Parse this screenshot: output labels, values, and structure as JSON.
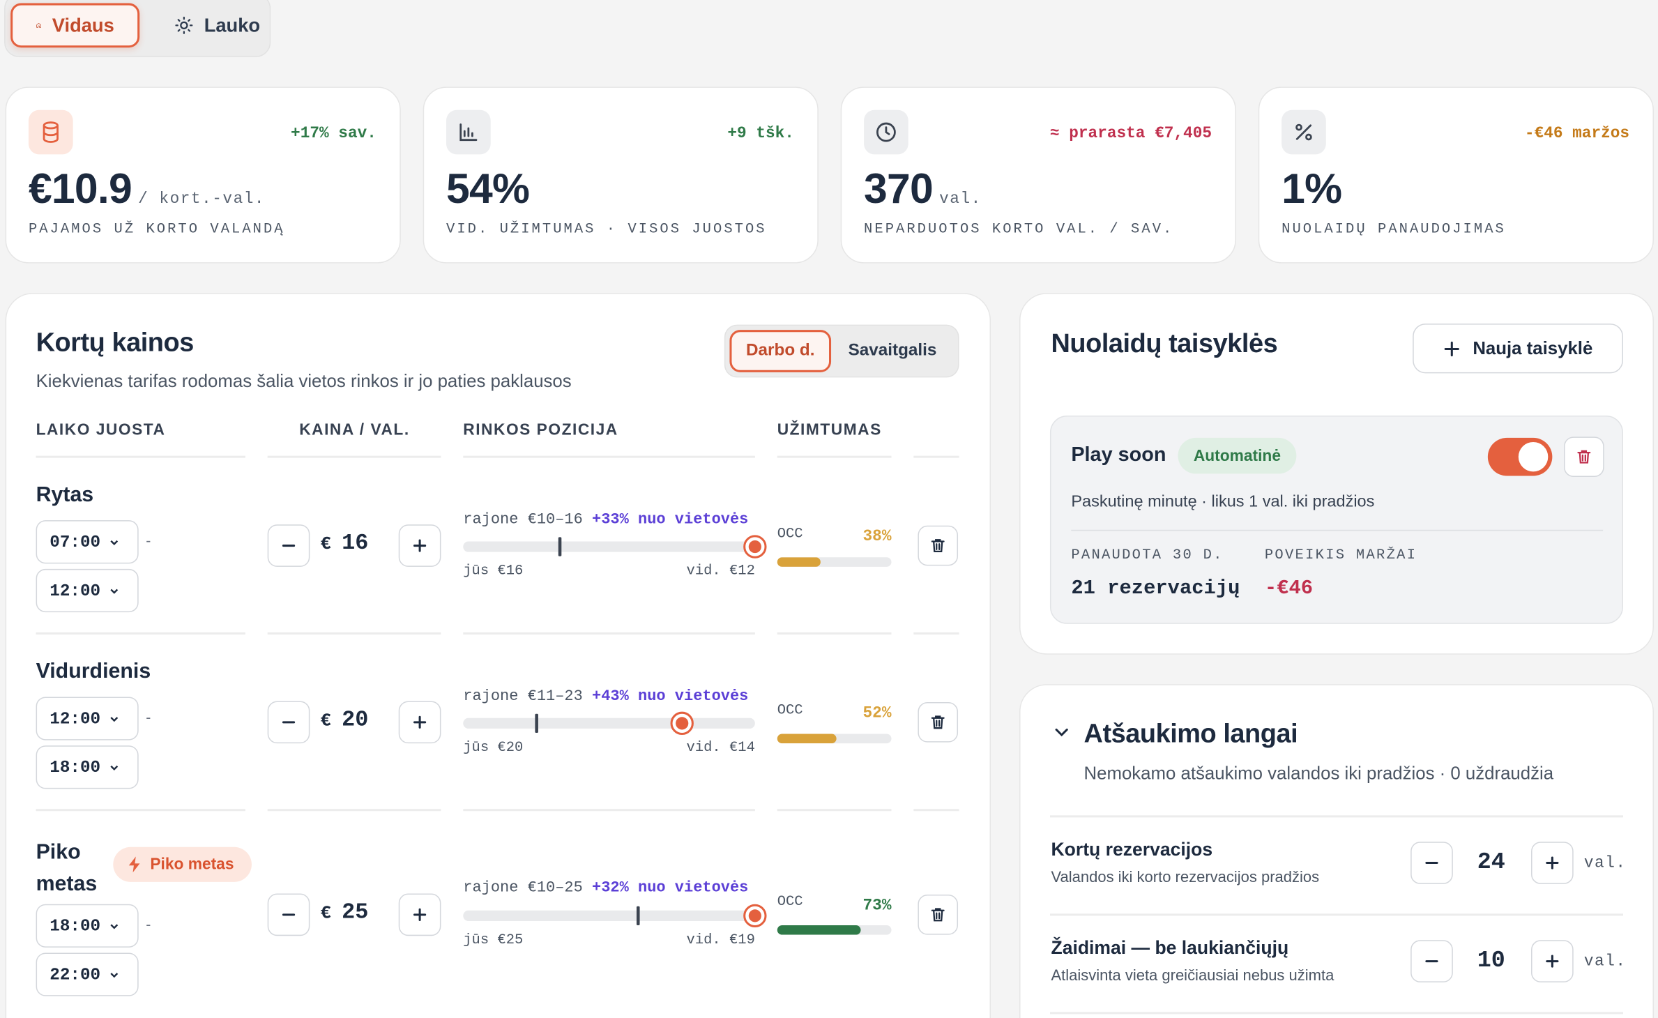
{
  "scope_tabs": {
    "indoor": "Vidaus",
    "outdoor": "Lauko"
  },
  "kpis": [
    {
      "value": "€10.9",
      "unit": "/ kort.-val.",
      "label": "PAJAMOS UŽ KORTO VALANDĄ",
      "delta": "+17% sav.",
      "delta_color": "#2f7a48",
      "icon": "database-icon"
    },
    {
      "value": "54%",
      "unit": "",
      "label": "VID. UŽIMTUMAS · VISOS JUOSTOS",
      "delta": "+9 tšk.",
      "delta_color": "#2f7a48",
      "icon": "bar-chart-icon"
    },
    {
      "value": "370",
      "unit": "val.",
      "label": "NEPARDUOTOS KORTO VAL. / SAV.",
      "delta": "≈ prarasta €7,405",
      "delta_color": "#c0304e",
      "icon": "clock-icon"
    },
    {
      "value": "1%",
      "unit": "",
      "label": "NUOLAIDŲ PANAUDOJIMAS",
      "delta": "-€46 maržos",
      "delta_color": "#c47a18",
      "icon": "percent-icon"
    }
  ],
  "pricing": {
    "title": "Kortų kainos",
    "subtitle": "Kiekvienas tarifas rodomas šalia vietos rinkos ir jo paties paklausos",
    "toggle_weekday": "Darbo d.",
    "toggle_weekend": "Savaitgalis",
    "columns": {
      "band": "LAIKO JUOSTA",
      "price": "KAINA / VAL.",
      "market": "RINKOS POZICIJA",
      "occupancy": "UŽIMTUMAS"
    },
    "rows": [
      {
        "name": "Rytas",
        "start": "07:00",
        "end": "12:00",
        "currency": "€",
        "price": "16",
        "range": "rajone €10–16",
        "delta": "+33% nuo vietovės",
        "yours": "jūs €16",
        "avg": "vid. €12",
        "occ_label": "OCC",
        "occ": "38%",
        "occ_value": 0.38,
        "occ_color": "#d9a23a",
        "avg_pos": 0.33,
        "you_pos": 1.0
      },
      {
        "name": "Vidurdienis",
        "start": "12:00",
        "end": "18:00",
        "currency": "€",
        "price": "20",
        "range": "rajone €11–23",
        "delta": "+43% nuo vietovės",
        "yours": "jūs €20",
        "avg": "vid. €14",
        "occ_label": "OCC",
        "occ": "52%",
        "occ_value": 0.52,
        "occ_color": "#d9a23a",
        "avg_pos": 0.25,
        "you_pos": 0.75
      },
      {
        "name": "Piko metas",
        "badge": "Piko metas",
        "start": "18:00",
        "end": "22:00",
        "currency": "€",
        "price": "25",
        "range": "rajone €10–25",
        "delta": "+32% nuo vietovės",
        "yours": "jūs €25",
        "avg": "vid. €19",
        "occ_label": "OCC",
        "occ": "73%",
        "occ_value": 0.73,
        "occ_color": "#2f7a48",
        "avg_pos": 0.6,
        "you_pos": 1.0
      }
    ]
  },
  "rules": {
    "title": "Nuolaidų taisyklės",
    "new_button": "Nauja taisyklė",
    "card": {
      "name": "Play soon",
      "badge": "Automatinė",
      "description": "Paskutinę minutę · likus 1 val. iki pradžios",
      "used_label": "PANAUDOTA 30 D.",
      "used_value": "21 rezervacijų",
      "impact_label": "POVEIKIS MARŽAI",
      "impact_value": "-€46",
      "enabled": true
    }
  },
  "cancel": {
    "title": "Atšaukimo langai",
    "subtitle": "Nemokamo atšaukimo valandos iki pradžios · 0 uždraudžia",
    "items": [
      {
        "title": "Kortų rezervacijos",
        "desc": "Valandos iki korto rezervacijos pradžios",
        "value": "24",
        "unit": "val."
      },
      {
        "title": "Žaidimai — be laukiančiųjų",
        "desc": "Atlaisvinta vieta greičiausiai nebus užimta",
        "value": "10",
        "unit": "val."
      }
    ]
  }
}
